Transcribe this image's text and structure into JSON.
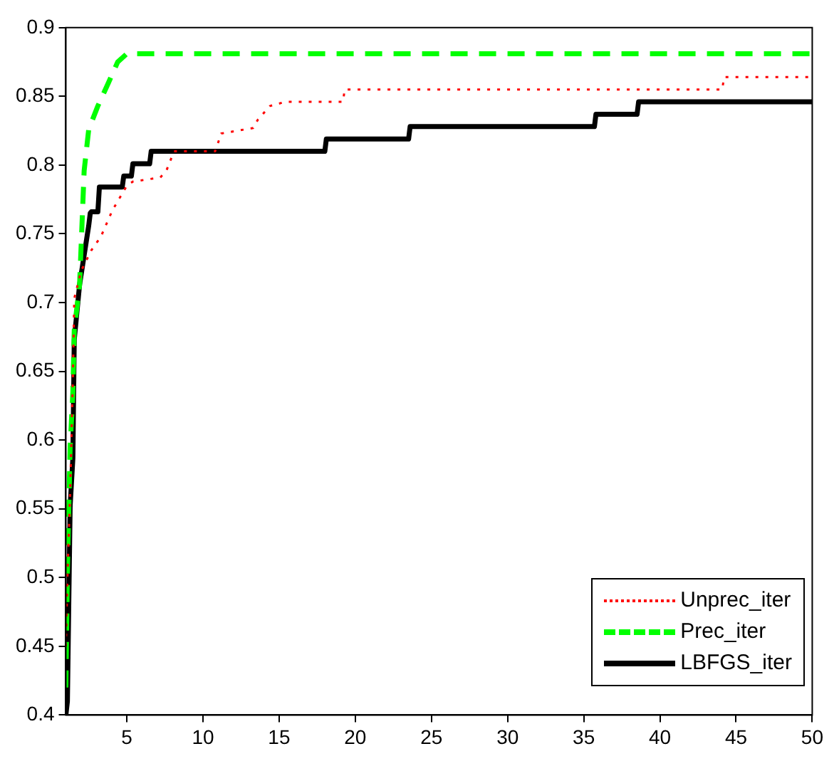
{
  "chart_data": {
    "type": "line",
    "xlim": [
      1,
      50
    ],
    "xticks": [
      5,
      10,
      15,
      20,
      25,
      30,
      35,
      40,
      45,
      50
    ],
    "ylim": [
      0.4,
      0.9
    ],
    "yticks": [
      0.4,
      0.45,
      0.5,
      0.55,
      0.6,
      0.65,
      0.7,
      0.75,
      0.8,
      0.85,
      0.9
    ],
    "grid": false,
    "legend": "bottom right",
    "marker": "none",
    "series": [
      {
        "name": "Unprec_iter",
        "color": "#ff0000",
        "line_style": "dotted",
        "x": [
          1,
          1.1,
          1.28,
          1.46,
          1.55,
          2.0,
          2.67,
          3.3,
          4.05,
          5.0,
          5.4,
          7.2,
          7.6,
          8.1,
          10.8,
          11.2,
          13.3,
          13.6,
          14.4,
          15.4,
          19.2,
          19.3,
          44.1,
          44.2,
          50
        ],
        "values": [
          0.45,
          0.5,
          0.562,
          0.645,
          0.703,
          0.723,
          0.738,
          0.748,
          0.767,
          0.785,
          0.788,
          0.791,
          0.796,
          0.81,
          0.81,
          0.823,
          0.827,
          0.833,
          0.843,
          0.846,
          0.846,
          0.855,
          0.855,
          0.864,
          0.864
        ]
      },
      {
        "name": "Prec_iter",
        "color": "#00ff00",
        "line_style": "dashed",
        "x": [
          1,
          1.1,
          1.28,
          1.46,
          1.55,
          1.9,
          2.2,
          2.5,
          3.1,
          3.8,
          4.4,
          5.0,
          50
        ],
        "values": [
          0.42,
          0.505,
          0.595,
          0.635,
          0.68,
          0.713,
          0.796,
          0.826,
          0.843,
          0.86,
          0.875,
          0.881,
          0.881
        ]
      },
      {
        "name": "LBFGS_iter",
        "color": "#000000",
        "line_style": "solid",
        "x": [
          1,
          1.1,
          1.28,
          1.46,
          1.55,
          1.9,
          2.5,
          2.6,
          2.67,
          3.1,
          3.2,
          4.7,
          4.8,
          5.3,
          5.4,
          6.5,
          6.6,
          18.0,
          18.1,
          23.5,
          23.6,
          35.7,
          35.8,
          38.5,
          38.6,
          50
        ],
        "values": [
          0.4,
          0.41,
          0.552,
          0.587,
          0.673,
          0.713,
          0.756,
          0.765,
          0.766,
          0.766,
          0.784,
          0.784,
          0.792,
          0.792,
          0.801,
          0.801,
          0.81,
          0.81,
          0.819,
          0.819,
          0.828,
          0.828,
          0.837,
          0.837,
          0.846,
          0.846
        ]
      }
    ]
  }
}
